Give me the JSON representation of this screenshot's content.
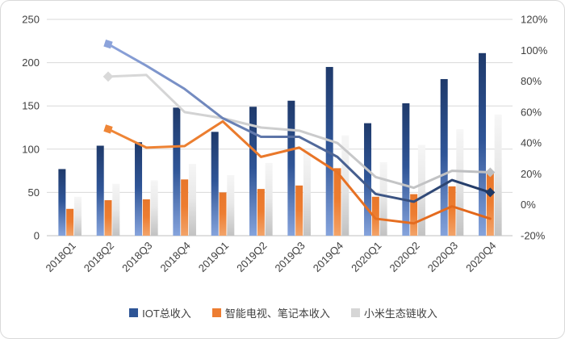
{
  "page": {
    "background": "#FFFFFF",
    "border_color": "#D9D9D9",
    "text_color": "#404040"
  },
  "chart_data": {
    "type": "combo_bar_line",
    "title": "",
    "categories": [
      "2018Q1",
      "2018Q2",
      "2018Q3",
      "2018Q4",
      "2019Q1",
      "2019Q2",
      "2019Q3",
      "2019Q4",
      "2020Q1",
      "2020Q2",
      "2020Q3",
      "2020Q4"
    ],
    "left_axis": {
      "min": 0,
      "max": 250,
      "tick_values": [
        0,
        50,
        100,
        150,
        200,
        250
      ],
      "tick_labels": [
        "0",
        "50",
        "100",
        "150",
        "200",
        "250"
      ]
    },
    "right_axis": {
      "min": -20,
      "max": 120,
      "tick_values": [
        -20,
        0,
        20,
        40,
        60,
        80,
        100,
        120
      ],
      "tick_labels": [
        "-20%",
        "0%",
        "20%",
        "40%",
        "60%",
        "80%",
        "100%",
        "120%"
      ]
    },
    "grid": {
      "horizontal": true,
      "color": "#D9D9D9",
      "axis_line_color": "#BFBFBF"
    },
    "bar_series": [
      {
        "id": "iot-total-revenue",
        "legend": "IOT总收入",
        "axis": "left",
        "values": [
          77,
          104,
          108,
          148,
          120,
          149,
          156,
          195,
          130,
          153,
          181,
          211
        ],
        "gradient": [
          "#1F3A6B",
          "#2F5597",
          "#85A3DC"
        ],
        "legend_color": "#2E5596"
      },
      {
        "id": "tv-laptop-revenue",
        "legend": "智能电视、笔记本收入",
        "axis": "left",
        "values": [
          31,
          41,
          42,
          65,
          50,
          54,
          58,
          78,
          45,
          48,
          57,
          72
        ],
        "gradient": [
          "#E8762A",
          "#ED7D31",
          "#F2A369"
        ],
        "legend_color": "#ED7D31"
      },
      {
        "id": "ecosystem-revenue",
        "legend": "小米生态链收入",
        "axis": "left",
        "values": [
          45,
          60,
          64,
          83,
          70,
          84,
          98,
          116,
          85,
          105,
          123,
          140
        ],
        "gradient": [
          "#F6F6F6",
          "#E8E8E8",
          "#C2C2C2"
        ],
        "legend_color": "#D6D6D6"
      }
    ],
    "line_series": [
      {
        "id": "gray-growth-line",
        "axis": "right",
        "values": [
          null,
          83,
          84,
          60,
          56,
          50,
          48,
          40,
          18,
          11,
          22,
          21
        ],
        "color_start": "#D9D9D9",
        "color_end": "#BDBEC0",
        "start_marker": "diamond",
        "end_marker": "diamond"
      },
      {
        "id": "blue-growth-line",
        "axis": "right",
        "values": [
          null,
          104,
          90,
          75,
          56,
          44,
          44,
          31,
          7,
          2,
          16,
          8
        ],
        "color_start": "#8CA3DB",
        "color_end": "#1F3864",
        "start_marker": "square",
        "end_marker": "diamond"
      },
      {
        "id": "orange-growth-line",
        "axis": "right",
        "values": [
          null,
          49,
          37,
          38,
          54,
          31,
          37,
          21,
          -9,
          -12,
          -1,
          -9
        ],
        "color_start": "#EF8637",
        "color_end": "#E2661A",
        "start_marker": "square",
        "end_marker": null
      }
    ],
    "legend_position": "bottom"
  }
}
